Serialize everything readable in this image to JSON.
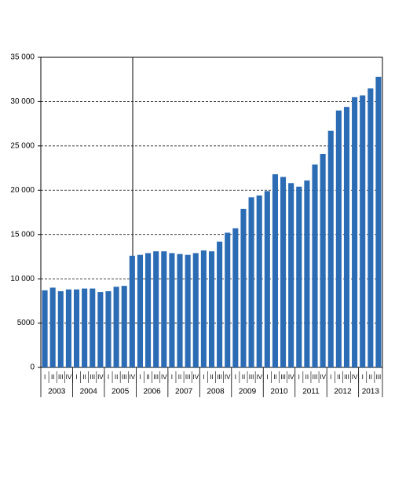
{
  "chart_data": {
    "type": "bar",
    "categories": [
      "I",
      "II",
      "III",
      "IV",
      "I",
      "II",
      "III",
      "IV",
      "I",
      "II",
      "III",
      "IV",
      "I",
      "II",
      "III",
      "IV",
      "I",
      "II",
      "III",
      "IV",
      "I",
      "II",
      "III",
      "IV",
      "I",
      "II",
      "III",
      "IV",
      "I",
      "II",
      "III",
      "IV",
      "I",
      "II",
      "III",
      "IV",
      "I",
      "II",
      "III",
      "IV",
      "I",
      "II",
      "III"
    ],
    "years": [
      "2003",
      "2004",
      "2005",
      "2006",
      "2007",
      "2008",
      "2009",
      "2010",
      "2011",
      "2012",
      "2013"
    ],
    "values": [
      8700,
      9000,
      8600,
      8800,
      8800,
      8900,
      8900,
      8500,
      8600,
      9100,
      9200,
      12600,
      12700,
      12900,
      13100,
      13100,
      12900,
      12800,
      12700,
      12900,
      13200,
      13100,
      14200,
      15200,
      15700,
      17900,
      19200,
      19400,
      19900,
      21800,
      21500,
      20800,
      20400,
      21100,
      22900,
      24100,
      26700,
      29000,
      29400,
      30500,
      30700,
      31500,
      32800
    ],
    "color": "#2b6cb5",
    "ylim": [
      0,
      35000
    ],
    "yticks": [
      0,
      5000,
      {
        "value": 10000,
        "label": "10 000"
      },
      {
        "value": 15000,
        "label": "15 000"
      },
      {
        "value": 20000,
        "label": "20 000"
      },
      {
        "value": 25000,
        "label": "25 000"
      },
      {
        "value": 30000,
        "label": "30 000"
      },
      {
        "value": 35000,
        "label": "35 000"
      }
    ],
    "grid": true
  }
}
